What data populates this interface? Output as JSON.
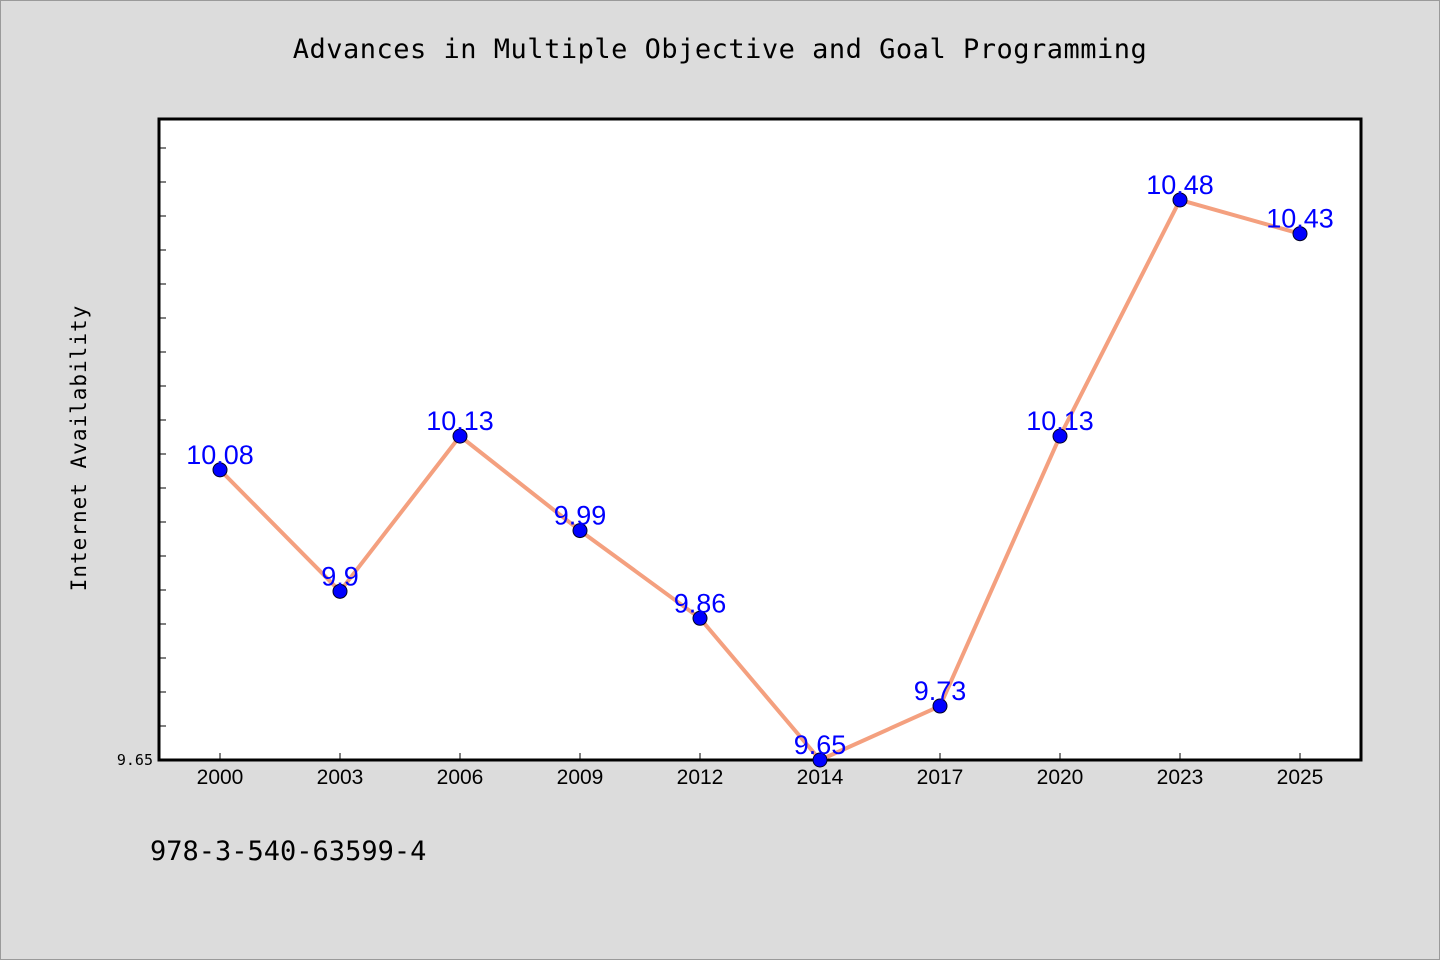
{
  "title": "Advances in Multiple Objective and Goal Programming",
  "ylabel": "Internet Availability",
  "footnote": "978-3-540-63599-4",
  "colors": {
    "background": "#dcdcdc",
    "plot_background": "#ffffff",
    "line": "#f4a07f",
    "marker": "#0000ff",
    "data_label": "#0000ff"
  },
  "chart_data": {
    "type": "line",
    "title": "Advances in Multiple Objective and Goal Programming",
    "xlabel": "",
    "ylabel": "Internet Availability",
    "categories": [
      "2000",
      "2003",
      "2006",
      "2009",
      "2012",
      "2014",
      "2017",
      "2020",
      "2023",
      "2025"
    ],
    "series": [
      {
        "values": [
          10.08,
          9.9,
          10.13,
          9.99,
          9.86,
          9.65,
          9.73,
          10.13,
          10.48,
          10.43
        ],
        "labels": [
          "10.08",
          "9.9",
          "10.13",
          "9.99",
          "9.86",
          "9.65",
          "9.73",
          "10.13",
          "10.48",
          "10.43"
        ]
      }
    ],
    "yticks": [
      "9.65"
    ],
    "ylim": [
      9.65,
      10.6
    ],
    "grid": false,
    "legend": "none"
  }
}
